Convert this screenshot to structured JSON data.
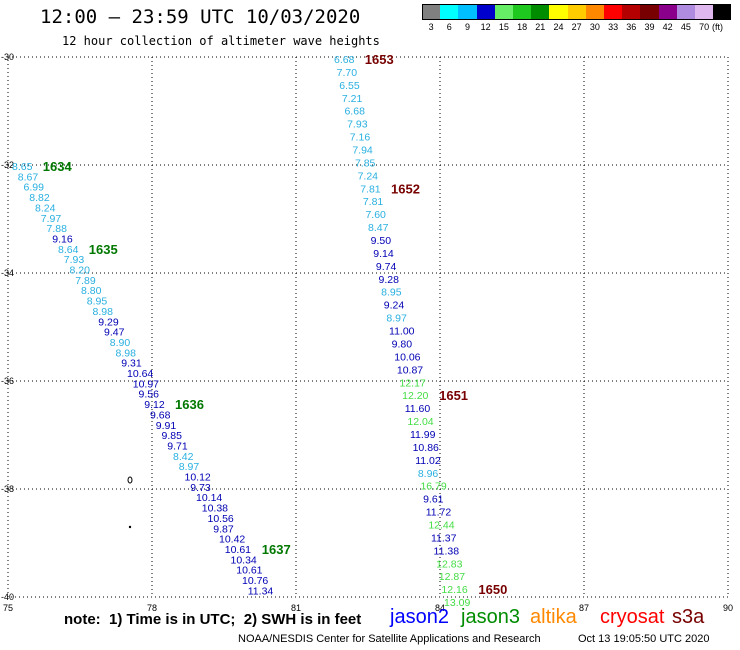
{
  "header": {
    "title": "12:00 – 23:59 UTC 10/03/2020",
    "subtitle": "12 hour collection of altimeter wave heights"
  },
  "legend": {
    "unit": "(ft)",
    "bins": [
      {
        "color": "#808080",
        "label": "3"
      },
      {
        "color": "#00ffff",
        "label": "6"
      },
      {
        "color": "#00bfff",
        "label": "9"
      },
      {
        "color": "#0000cd",
        "label": "12"
      },
      {
        "color": "#66ee66",
        "label": "15"
      },
      {
        "color": "#1ec81e",
        "label": "18"
      },
      {
        "color": "#008c00",
        "label": "21"
      },
      {
        "color": "#ffff00",
        "label": "24"
      },
      {
        "color": "#ffcc00",
        "label": "27"
      },
      {
        "color": "#ff8800",
        "label": "30"
      },
      {
        "color": "#ff0000",
        "label": "33"
      },
      {
        "color": "#b40000",
        "label": "36"
      },
      {
        "color": "#780000",
        "label": "39"
      },
      {
        "color": "#8b008b",
        "label": "42"
      },
      {
        "color": "#b08ce0",
        "label": "45"
      },
      {
        "color": "#e0b8f0",
        "label": "70"
      },
      {
        "color": "#000000",
        "label": ""
      }
    ]
  },
  "axes": {
    "x_ticks": [
      "75",
      "78",
      "81",
      "84",
      "87",
      "90"
    ],
    "y_ticks": [
      "-30",
      "-32",
      "-34",
      "-36",
      "-38",
      "-40"
    ]
  },
  "colors": {
    "light": "#29b0e0",
    "dark": "#0000b4",
    "green": "#44dd44",
    "time_green": "#007800",
    "time_maroon": "#780000"
  },
  "tracks": [
    {
      "comment_free": true,
      "points": [
        [
          "8.65",
          "light"
        ],
        [
          "8.67",
          "light"
        ],
        [
          "6.99",
          "light"
        ],
        [
          "8.82",
          "light"
        ],
        [
          "8.24",
          "light"
        ],
        [
          "7.97",
          "light"
        ],
        [
          "7.88",
          "light"
        ],
        [
          "9.16",
          "dark"
        ],
        [
          "8.64",
          "light"
        ],
        [
          "7.93",
          "light"
        ],
        [
          "8.20",
          "light"
        ],
        [
          "7.89",
          "light"
        ],
        [
          "8.80",
          "light"
        ],
        [
          "8.95",
          "light"
        ],
        [
          "8.98",
          "light"
        ],
        [
          "9.29",
          "dark"
        ],
        [
          "9.47",
          "dark"
        ],
        [
          "8.90",
          "light"
        ],
        [
          "8.98",
          "light"
        ],
        [
          "9.31",
          "dark"
        ],
        [
          "10.64",
          "dark"
        ],
        [
          "10.97",
          "dark"
        ],
        [
          "9.56",
          "dark"
        ],
        [
          "9.12",
          "dark"
        ],
        [
          "9.68",
          "dark"
        ],
        [
          "9.91",
          "dark"
        ],
        [
          "9.85",
          "dark"
        ],
        [
          "9.71",
          "dark"
        ],
        [
          "8.42",
          "light"
        ],
        [
          "8.97",
          "light"
        ],
        [
          "10.12",
          "dark"
        ],
        [
          "9.73",
          "dark"
        ],
        [
          "10.14",
          "dark"
        ],
        [
          "10.38",
          "dark"
        ],
        [
          "10.56",
          "dark"
        ],
        [
          "9.87",
          "dark"
        ],
        [
          "10.42",
          "dark"
        ],
        [
          "10.61",
          "dark"
        ],
        [
          "10.34",
          "dark"
        ],
        [
          "10.61",
          "dark"
        ],
        [
          "10.76",
          "dark"
        ],
        [
          "11.34",
          "dark"
        ]
      ],
      "times": [
        {
          "label": "1634",
          "index": 0,
          "color": "time_green"
        },
        {
          "label": "1635",
          "index": 8,
          "color": "time_green"
        },
        {
          "label": "1636",
          "index": 23,
          "color": "time_green"
        },
        {
          "label": "1637",
          "index": 37,
          "color": "time_green"
        }
      ]
    },
    {
      "points": [
        [
          "6.68",
          "light"
        ],
        [
          "7.70",
          "light"
        ],
        [
          "6.55",
          "light"
        ],
        [
          "7.21",
          "light"
        ],
        [
          "6.68",
          "light"
        ],
        [
          "7.93",
          "light"
        ],
        [
          "7.16",
          "light"
        ],
        [
          "7.94",
          "light"
        ],
        [
          "7.85",
          "light"
        ],
        [
          "7.24",
          "light"
        ],
        [
          "7.81",
          "light"
        ],
        [
          "7.81",
          "light"
        ],
        [
          "7.60",
          "light"
        ],
        [
          "8.47",
          "light"
        ],
        [
          "9.50",
          "dark"
        ],
        [
          "9.14",
          "dark"
        ],
        [
          "9.74",
          "dark"
        ],
        [
          "9.28",
          "dark"
        ],
        [
          "8.95",
          "light"
        ],
        [
          "9.24",
          "dark"
        ],
        [
          "8.97",
          "light"
        ],
        [
          "11.00",
          "dark"
        ],
        [
          "9.80",
          "dark"
        ],
        [
          "10.06",
          "dark"
        ],
        [
          "10.87",
          "dark"
        ],
        [
          "12.17",
          "green"
        ],
        [
          "12.20",
          "green"
        ],
        [
          "11.60",
          "dark"
        ],
        [
          "12.04",
          "green"
        ],
        [
          "11.99",
          "dark"
        ],
        [
          "10.86",
          "dark"
        ],
        [
          "11.02",
          "dark"
        ],
        [
          "8.96",
          "light"
        ],
        [
          "16.79",
          "green"
        ],
        [
          "9.61",
          "dark"
        ],
        [
          "11.72",
          "dark"
        ],
        [
          "12.44",
          "green"
        ],
        [
          "11.37",
          "dark"
        ],
        [
          "11.38",
          "dark"
        ],
        [
          "12.83",
          "green"
        ],
        [
          "12.87",
          "green"
        ],
        [
          "12.16",
          "green"
        ],
        [
          "13.09",
          "green"
        ]
      ],
      "times": [
        {
          "label": "1653",
          "index": 0,
          "color": "time_maroon"
        },
        {
          "label": "1652",
          "index": 10,
          "color": "time_maroon"
        },
        {
          "label": "1651",
          "index": 26,
          "color": "time_maroon"
        },
        {
          "label": "1650",
          "index": 41,
          "color": "time_maroon"
        }
      ]
    }
  ],
  "footer": {
    "note": "note:  1) Time is in UTC;  2) SWH is in feet",
    "satellites": [
      {
        "name": "jason2",
        "color": "#0000ff"
      },
      {
        "name": "jason3",
        "color": "#008c00"
      },
      {
        "name": "altika",
        "color": "#ff8800"
      },
      {
        "name": "cryosat",
        "color": "#ff0000"
      },
      {
        "name": "s3a",
        "color": "#780000"
      }
    ],
    "credit": "NOAA/NESDIS Center for Satellite Applications and Research",
    "timestamp": "Oct 13 19:05:50 UTC 2020"
  }
}
